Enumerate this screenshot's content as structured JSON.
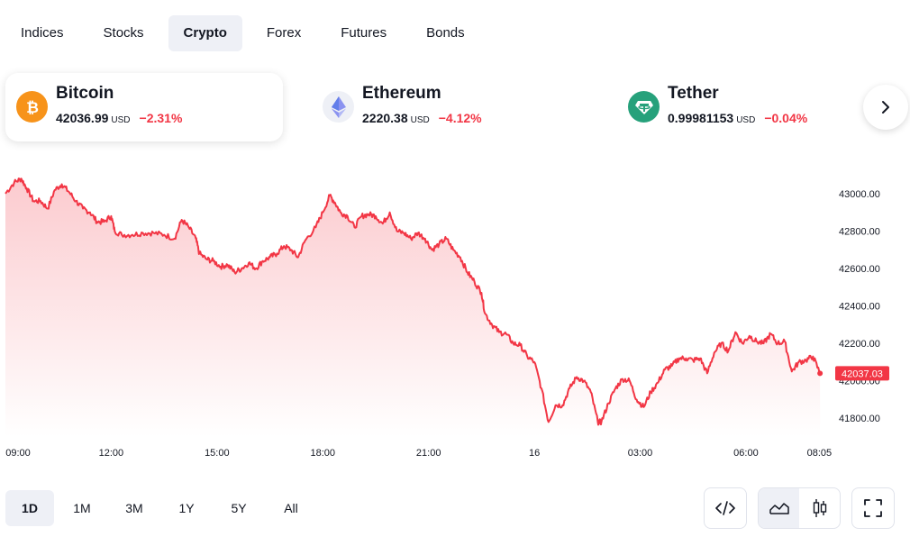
{
  "tabs": [
    {
      "label": "Indices",
      "active": false
    },
    {
      "label": "Stocks",
      "active": false
    },
    {
      "label": "Crypto",
      "active": true
    },
    {
      "label": "Forex",
      "active": false
    },
    {
      "label": "Futures",
      "active": false
    },
    {
      "label": "Bonds",
      "active": false
    }
  ],
  "coins": [
    {
      "name": "Bitcoin",
      "price": "42036.99",
      "currency": "USD",
      "change": "−2.31%",
      "icon": "bitcoin-icon",
      "color": "#f7931a",
      "selected": true
    },
    {
      "name": "Ethereum",
      "price": "2220.38",
      "currency": "USD",
      "change": "−4.12%",
      "icon": "ethereum-icon",
      "color": "#627eea",
      "selected": false
    },
    {
      "name": "Tether",
      "price": "0.99981153",
      "currency": "USD",
      "change": "−0.04%",
      "icon": "tether-icon",
      "color": "#26a17b",
      "selected": false
    }
  ],
  "ranges": [
    {
      "label": "1D",
      "active": true
    },
    {
      "label": "1M",
      "active": false
    },
    {
      "label": "3M",
      "active": false
    },
    {
      "label": "1Y",
      "active": false
    },
    {
      "label": "5Y",
      "active": false
    },
    {
      "label": "All",
      "active": false
    }
  ],
  "tools": {
    "embed_icon": "code-icon",
    "area_icon": "area-chart-icon",
    "candle_icon": "candlestick-icon",
    "fullscreen_icon": "fullscreen-icon",
    "chart_style_active": "area"
  },
  "colors": {
    "line": "#f23645",
    "accent_bg": "#eef0f6",
    "down": "#f23645"
  },
  "chart_data": {
    "type": "area",
    "title": "",
    "series_name": "Bitcoin",
    "last_value_label": "42037.03",
    "yticks": [
      "43000.00",
      "42800.00",
      "42600.00",
      "42400.00",
      "42200.00",
      "42000.00",
      "41800.00"
    ],
    "ylim": [
      41700,
      43120
    ],
    "xticks": [
      "09:00",
      "12:00",
      "15:00",
      "18:00",
      "21:00",
      "16",
      "03:00",
      "06:00",
      "08:05"
    ],
    "x_hours_ticks": [
      0,
      3,
      6,
      9,
      12,
      15,
      18,
      21,
      23.08
    ],
    "xlim": [
      0,
      23.25
    ],
    "points": [
      [
        0.0,
        43000
      ],
      [
        0.25,
        43060
      ],
      [
        0.45,
        43080
      ],
      [
        0.6,
        43030
      ],
      [
        0.8,
        42960
      ],
      [
        1.0,
        42960
      ],
      [
        1.2,
        42920
      ],
      [
        1.4,
        43020
      ],
      [
        1.6,
        43050
      ],
      [
        1.8,
        43010
      ],
      [
        2.0,
        42960
      ],
      [
        2.2,
        42920
      ],
      [
        2.4,
        42900
      ],
      [
        2.6,
        42850
      ],
      [
        2.8,
        42850
      ],
      [
        3.0,
        42880
      ],
      [
        3.1,
        42800
      ],
      [
        3.3,
        42780
      ],
      [
        3.6,
        42780
      ],
      [
        3.9,
        42790
      ],
      [
        4.2,
        42790
      ],
      [
        4.5,
        42780
      ],
      [
        4.8,
        42760
      ],
      [
        5.0,
        42860
      ],
      [
        5.2,
        42820
      ],
      [
        5.4,
        42760
      ],
      [
        5.5,
        42680
      ],
      [
        5.7,
        42650
      ],
      [
        5.9,
        42640
      ],
      [
        6.1,
        42610
      ],
      [
        6.3,
        42620
      ],
      [
        6.5,
        42580
      ],
      [
        6.7,
        42600
      ],
      [
        6.9,
        42630
      ],
      [
        7.1,
        42600
      ],
      [
        7.3,
        42640
      ],
      [
        7.5,
        42660
      ],
      [
        7.7,
        42680
      ],
      [
        7.9,
        42720
      ],
      [
        8.1,
        42700
      ],
      [
        8.3,
        42660
      ],
      [
        8.5,
        42750
      ],
      [
        8.8,
        42820
      ],
      [
        9.0,
        42900
      ],
      [
        9.2,
        42990
      ],
      [
        9.35,
        42950
      ],
      [
        9.5,
        42900
      ],
      [
        9.7,
        42880
      ],
      [
        9.9,
        42820
      ],
      [
        10.1,
        42880
      ],
      [
        10.3,
        42890
      ],
      [
        10.5,
        42880
      ],
      [
        10.7,
        42840
      ],
      [
        10.9,
        42900
      ],
      [
        11.1,
        42800
      ],
      [
        11.3,
        42790
      ],
      [
        11.5,
        42760
      ],
      [
        11.7,
        42790
      ],
      [
        11.9,
        42760
      ],
      [
        12.1,
        42700
      ],
      [
        12.3,
        42730
      ],
      [
        12.5,
        42760
      ],
      [
        12.7,
        42700
      ],
      [
        12.9,
        42660
      ],
      [
        13.1,
        42580
      ],
      [
        13.3,
        42530
      ],
      [
        13.5,
        42470
      ],
      [
        13.6,
        42360
      ],
      [
        13.8,
        42300
      ],
      [
        14.0,
        42260
      ],
      [
        14.2,
        42250
      ],
      [
        14.4,
        42200
      ],
      [
        14.6,
        42190
      ],
      [
        14.8,
        42130
      ],
      [
        15.0,
        42100
      ],
      [
        15.2,
        41960
      ],
      [
        15.4,
        41780
      ],
      [
        15.6,
        41870
      ],
      [
        15.8,
        41870
      ],
      [
        16.0,
        41960
      ],
      [
        16.2,
        42020
      ],
      [
        16.4,
        42000
      ],
      [
        16.6,
        41940
      ],
      [
        16.8,
        41780
      ],
      [
        16.9,
        41780
      ],
      [
        17.1,
        41880
      ],
      [
        17.3,
        41960
      ],
      [
        17.5,
        42010
      ],
      [
        17.7,
        42000
      ],
      [
        17.9,
        41900
      ],
      [
        18.1,
        41860
      ],
      [
        18.3,
        41940
      ],
      [
        18.5,
        41990
      ],
      [
        18.7,
        42060
      ],
      [
        18.9,
        42080
      ],
      [
        19.1,
        42120
      ],
      [
        19.3,
        42120
      ],
      [
        19.5,
        42110
      ],
      [
        19.7,
        42120
      ],
      [
        19.9,
        42040
      ],
      [
        20.1,
        42150
      ],
      [
        20.3,
        42200
      ],
      [
        20.5,
        42160
      ],
      [
        20.7,
        42260
      ],
      [
        20.9,
        42200
      ],
      [
        21.1,
        42240
      ],
      [
        21.3,
        42210
      ],
      [
        21.5,
        42200
      ],
      [
        21.7,
        42250
      ],
      [
        21.9,
        42200
      ],
      [
        22.1,
        42210
      ],
      [
        22.3,
        42050
      ],
      [
        22.5,
        42100
      ],
      [
        22.7,
        42110
      ],
      [
        22.9,
        42130
      ],
      [
        23.1,
        42040
      ]
    ]
  }
}
